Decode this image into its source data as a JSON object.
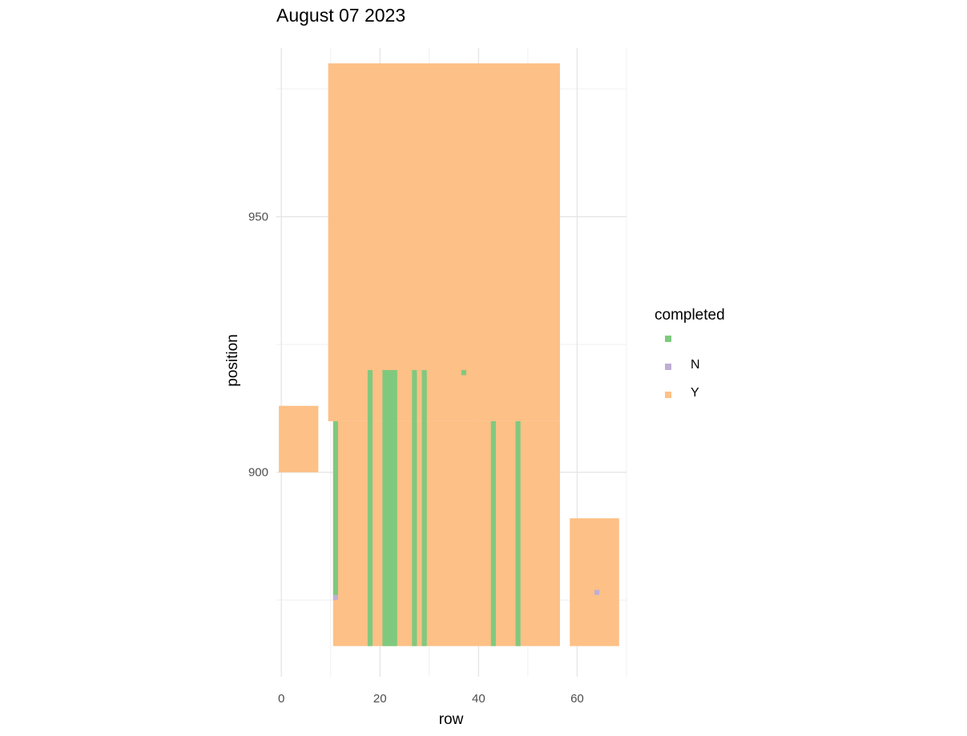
{
  "chart_data": {
    "type": "heatmap",
    "title": "August 07 2023",
    "xlabel": "row",
    "ylabel": "position",
    "xlim": [
      -1,
      70
    ],
    "ylim": [
      860,
      983
    ],
    "x_ticks": [
      0,
      20,
      40,
      60
    ],
    "x_minor": [
      10,
      30,
      50,
      70
    ],
    "y_ticks": [
      900,
      950
    ],
    "y_minor": [
      875,
      925,
      975
    ],
    "grid": true,
    "legend_title": "completed",
    "legend_placement": "right",
    "series": [
      {
        "name": "",
        "color": "#7FC97F"
      },
      {
        "name": "N",
        "color": "#BEAED4"
      },
      {
        "name": "Y",
        "color": "#FDC086"
      }
    ],
    "regions": [
      {
        "completed": "Y",
        "x": [
          0,
          7
        ],
        "y": [
          900,
          913
        ]
      },
      {
        "completed": "Y",
        "x": [
          10,
          56
        ],
        "y": [
          910,
          980
        ]
      },
      {
        "completed": "Y",
        "x": [
          11,
          56
        ],
        "y": [
          866,
          910
        ]
      },
      {
        "completed": "Y",
        "x": [
          59,
          68
        ],
        "y": [
          866,
          891
        ]
      },
      {
        "completed": "",
        "x": [
          11,
          11
        ],
        "y": [
          876,
          910
        ]
      },
      {
        "completed": "",
        "x": [
          18,
          18
        ],
        "y": [
          866,
          920
        ]
      },
      {
        "completed": "",
        "x": [
          21,
          23
        ],
        "y": [
          866,
          920
        ]
      },
      {
        "completed": "",
        "x": [
          27,
          27
        ],
        "y": [
          866,
          920
        ]
      },
      {
        "completed": "",
        "x": [
          29,
          29
        ],
        "y": [
          866,
          920
        ]
      },
      {
        "completed": "",
        "x": [
          37,
          37
        ],
        "y": [
          919,
          920
        ]
      },
      {
        "completed": "",
        "x": [
          43,
          43
        ],
        "y": [
          866,
          910
        ]
      },
      {
        "completed": "",
        "x": [
          48,
          48
        ],
        "y": [
          866,
          910
        ]
      },
      {
        "completed": "N",
        "x": [
          11,
          11
        ],
        "y": [
          875,
          876
        ]
      },
      {
        "completed": "N",
        "x": [
          64,
          64
        ],
        "y": [
          876,
          877
        ]
      }
    ]
  }
}
